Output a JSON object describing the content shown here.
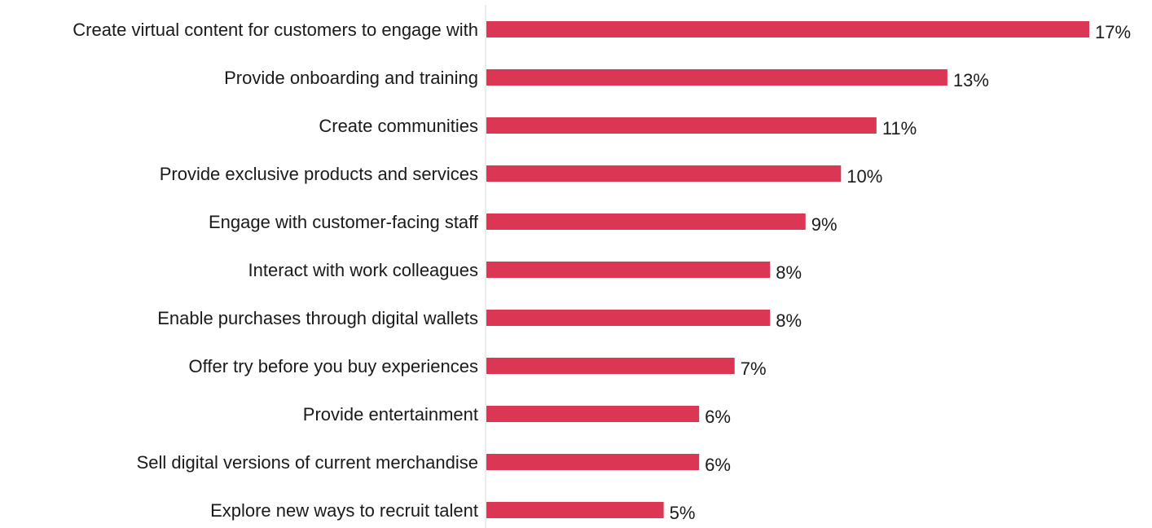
{
  "chart_data": {
    "type": "bar",
    "orientation": "horizontal",
    "title": "",
    "xlabel": "",
    "ylabel": "",
    "categories": [
      "Create virtual content for customers to engage with",
      "Provide onboarding and training",
      "Create communities",
      "Provide exclusive products and services",
      "Engage with customer-facing staff",
      "Interact with work colleagues",
      "Enable purchases through digital wallets",
      "Offer try before you buy experiences",
      "Provide entertainment",
      "Sell digital versions of current merchandise",
      "Explore new ways to recruit talent"
    ],
    "values": [
      17,
      13,
      11,
      10,
      9,
      8,
      8,
      7,
      6,
      6,
      5
    ],
    "value_labels": [
      "17%",
      "13%",
      "11%",
      "10%",
      "9%",
      "8%",
      "8%",
      "7%",
      "6%",
      "6%",
      "5%"
    ],
    "unit": "%",
    "xlim": [
      0,
      17
    ],
    "grid": false,
    "legend": "none",
    "bar_color": "#dc3655",
    "axis_color": "#d9d9d9"
  }
}
